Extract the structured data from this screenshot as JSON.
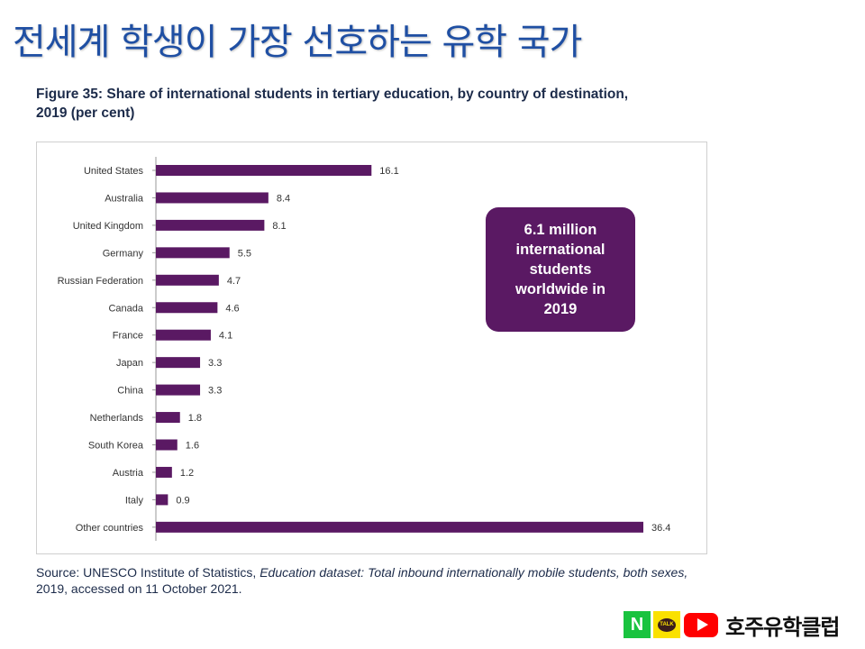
{
  "slide": {
    "title": "전세계 학생이 가장 선호하는 유학 국가"
  },
  "figure": {
    "caption_line1": "Figure 35: Share of international students in tertiary education, by country of destination,",
    "caption_line2": "2019 (per cent)"
  },
  "callout": {
    "line1": "6.1 million",
    "line2": "international",
    "line3": "students",
    "line4": "worldwide in",
    "line5": "2019"
  },
  "source": {
    "prefix": "Source: UNESCO Institute of Statistics, ",
    "italic": "Education dataset: Total inbound internationally mobile students, both sexes,",
    "line2": "2019, accessed on 11 October 2021."
  },
  "branding": {
    "naver_letter": "N",
    "kakao_label": "TALK",
    "name": "호주유학클럽",
    "icons": [
      "naver-icon",
      "kakaotalk-icon",
      "youtube-icon"
    ]
  },
  "chart_data": {
    "type": "bar",
    "orientation": "horizontal",
    "title": "Figure 35: Share of international students in tertiary education, by country of destination, 2019 (per cent)",
    "categories": [
      "United States",
      "Australia",
      "United Kingdom",
      "Germany",
      "Russian Federation",
      "Canada",
      "France",
      "Japan",
      "China",
      "Netherlands",
      "South Korea",
      "Austria",
      "Italy",
      "Other countries"
    ],
    "values": [
      16.1,
      8.4,
      8.1,
      5.5,
      4.7,
      4.6,
      4.1,
      3.3,
      3.3,
      1.8,
      1.6,
      1.2,
      0.9,
      36.4
    ],
    "value_labels": [
      "16.1",
      "8.4",
      "8.1",
      "5.5",
      "4.7",
      "4.6",
      "4.1",
      "3.3",
      "3.3",
      "1.8",
      "1.6",
      "1.2",
      "0.9",
      "36.4"
    ],
    "xlim": [
      0,
      36.4
    ],
    "grid": false,
    "legend": "none",
    "bar_color": "#5a1963"
  },
  "colors": {
    "title_blue": "#1f4fa3",
    "bar_purple": "#5a1963",
    "callout_purple": "#5a1963",
    "naver_green": "#19c33f",
    "kakao_yellow": "#fae100",
    "youtube_red": "#ff0000"
  }
}
